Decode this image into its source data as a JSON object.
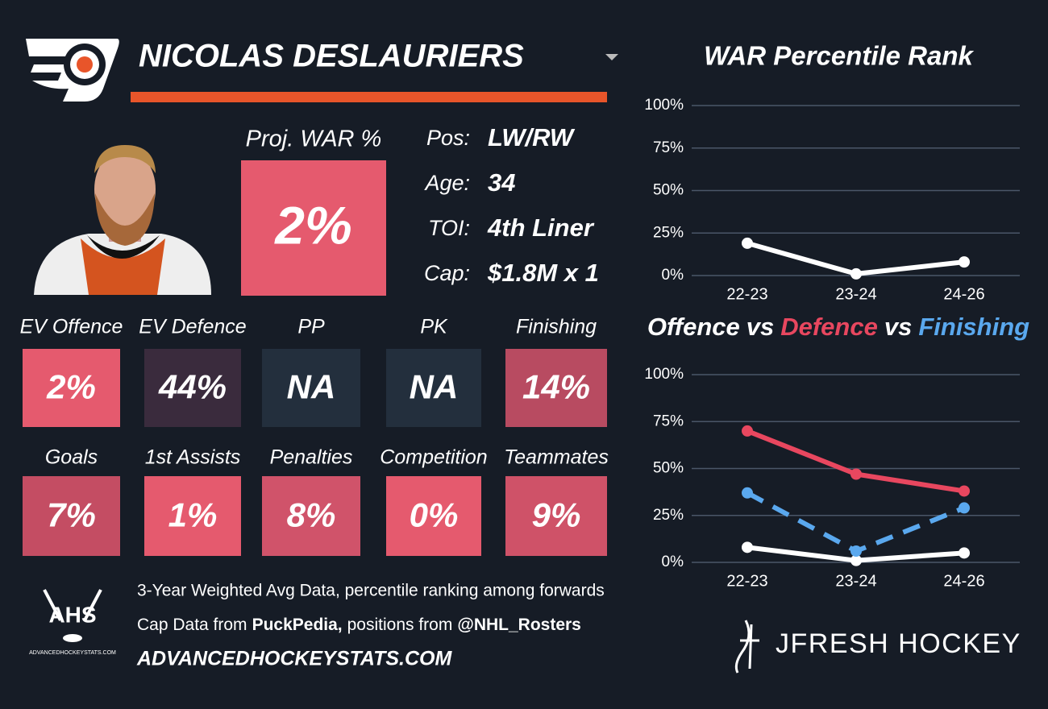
{
  "header": {
    "player": "NICOLAS DESLAURIERS"
  },
  "proj_war": {
    "label": "Proj. WAR %",
    "value": "2%",
    "color": "#e55a6e"
  },
  "info": [
    {
      "label": "Pos:",
      "value": "LW/RW"
    },
    {
      "label": "Age:",
      "value": "34"
    },
    {
      "label": "TOI:",
      "value": "4th Liner"
    },
    {
      "label": "Cap:",
      "value": "$1.8M x 1"
    }
  ],
  "tiles": [
    {
      "label": "EV Offence",
      "value": "2%",
      "color": "#e55a6e"
    },
    {
      "label": "EV Defence",
      "value": "44%",
      "color": "#3a2b3d"
    },
    {
      "label": "PP",
      "value": "NA",
      "color": "#232f3d"
    },
    {
      "label": "PK",
      "value": "NA",
      "color": "#232f3d"
    },
    {
      "label": "Finishing",
      "value": "14%",
      "color": "#b84b61"
    },
    {
      "label": "Goals",
      "value": "7%",
      "color": "#c44d63"
    },
    {
      "label": "1st Assists",
      "value": "1%",
      "color": "#e55a6e"
    },
    {
      "label": "Penalties",
      "value": "8%",
      "color": "#d0536a"
    },
    {
      "label": "Competition",
      "value": "0%",
      "color": "#e55a6e"
    },
    {
      "label": "Teammates",
      "value": "9%",
      "color": "#cf5268"
    }
  ],
  "footer": {
    "note": "3-Year Weighted Avg Data, percentile ranking among forwards",
    "sources": [
      "Cap Data from",
      "PuckPedia,",
      "positions from",
      "@NHL_Rosters"
    ],
    "website": "ADVANCEDHOCKEYSTATS.COM",
    "ahs_logo": "AHS",
    "ahs_url": "ADVANCEDHOCKEYSTATS.COM",
    "brand": "JFRESH HOCKEY"
  },
  "chart_data": [
    {
      "type": "line",
      "title": "WAR Percentile Rank",
      "categories": [
        "22-23",
        "23-24",
        "24-26"
      ],
      "series": [
        {
          "color": "#ffffff",
          "values": [
            19,
            1,
            8
          ]
        }
      ],
      "ylim": [
        0,
        100
      ],
      "yticks": [
        {
          "value": 0,
          "label": "0%"
        },
        {
          "value": 25,
          "label": "25%"
        },
        {
          "value": 50,
          "label": "50%"
        },
        {
          "value": 75,
          "label": "75%"
        },
        {
          "value": 100,
          "label": "100%"
        }
      ],
      "grid": true
    },
    {
      "type": "line",
      "title_separator": "vs",
      "categories": [
        "22-23",
        "23-24",
        "24-26"
      ],
      "series": [
        {
          "name": "Offence",
          "color": "#ffffff",
          "values": [
            8,
            1,
            5
          ]
        },
        {
          "name": "Defence",
          "color": "#e8475f",
          "values": [
            70,
            47,
            38
          ]
        },
        {
          "name": "Finishing",
          "color": "#5aa8ee",
          "values": [
            37,
            6,
            29
          ],
          "dashed": true
        }
      ],
      "ylim": [
        0,
        100
      ],
      "yticks": [
        {
          "value": 0,
          "label": "0%"
        },
        {
          "value": 25,
          "label": "25%"
        },
        {
          "value": 50,
          "label": "50%"
        },
        {
          "value": 75,
          "label": "75%"
        },
        {
          "value": 100,
          "label": "100%"
        }
      ],
      "grid": true
    }
  ]
}
